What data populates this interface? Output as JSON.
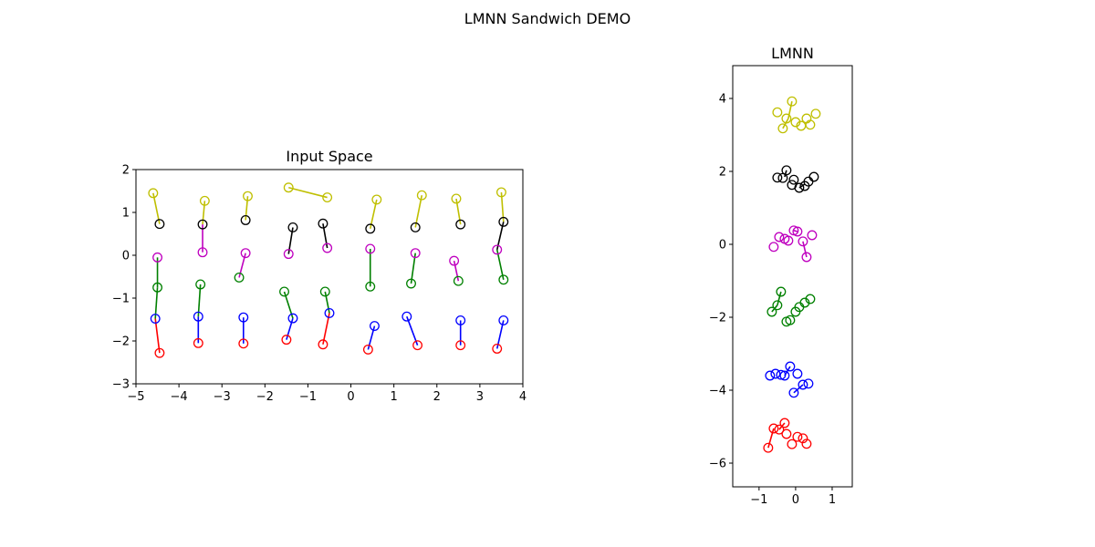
{
  "figure": {
    "suptitle": "LMNN Sandwich DEMO"
  },
  "colors": {
    "y": "#bfbf00",
    "k": "#000000",
    "m": "#bf00bf",
    "g": "#008000",
    "b": "#0000ff",
    "r": "#ff0000"
  },
  "chart_data": [
    {
      "type": "scatter",
      "title": "Input Space",
      "xlabel": "",
      "ylabel": "",
      "xlim": [
        -5,
        4
      ],
      "ylim": [
        -3,
        2
      ],
      "xticks": [
        -5,
        -4,
        -3,
        -2,
        -1,
        0,
        1,
        2,
        3,
        4
      ],
      "yticks": [
        -3,
        -2,
        -1,
        0,
        1,
        2
      ],
      "grid": false,
      "series": [
        {
          "color": "y",
          "points": [
            [
              -4.6,
              1.45
            ],
            [
              -3.4,
              1.27
            ],
            [
              -2.4,
              1.38
            ],
            [
              -1.45,
              1.58
            ],
            [
              -0.55,
              1.35
            ],
            [
              0.6,
              1.3
            ],
            [
              1.65,
              1.4
            ],
            [
              2.45,
              1.32
            ],
            [
              3.5,
              1.47
            ]
          ]
        },
        {
          "color": "k",
          "points": [
            [
              -4.45,
              0.73
            ],
            [
              -3.45,
              0.72
            ],
            [
              -2.45,
              0.82
            ],
            [
              -1.35,
              0.65
            ],
            [
              -0.65,
              0.74
            ],
            [
              0.45,
              0.62
            ],
            [
              1.5,
              0.65
            ],
            [
              2.55,
              0.72
            ],
            [
              3.55,
              0.78
            ]
          ]
        },
        {
          "color": "m",
          "points": [
            [
              -4.5,
              -0.05
            ],
            [
              -3.45,
              0.07
            ],
            [
              -2.45,
              0.05
            ],
            [
              -1.45,
              0.03
            ],
            [
              -0.55,
              0.17
            ],
            [
              0.45,
              0.15
            ],
            [
              1.5,
              0.05
            ],
            [
              2.4,
              -0.13
            ],
            [
              3.4,
              0.13
            ]
          ]
        },
        {
          "color": "g",
          "points": [
            [
              -4.5,
              -0.75
            ],
            [
              -3.5,
              -0.68
            ],
            [
              -2.6,
              -0.52
            ],
            [
              -1.55,
              -0.85
            ],
            [
              -0.6,
              -0.85
            ],
            [
              0.45,
              -0.73
            ],
            [
              1.4,
              -0.66
            ],
            [
              2.5,
              -0.6
            ],
            [
              3.55,
              -0.57
            ]
          ]
        },
        {
          "color": "b",
          "points": [
            [
              -4.55,
              -1.48
            ],
            [
              -3.55,
              -1.43
            ],
            [
              -2.5,
              -1.45
            ],
            [
              -1.35,
              -1.47
            ],
            [
              -0.5,
              -1.35
            ],
            [
              0.55,
              -1.65
            ],
            [
              1.3,
              -1.43
            ],
            [
              2.55,
              -1.52
            ],
            [
              3.55,
              -1.52
            ]
          ]
        },
        {
          "color": "r",
          "points": [
            [
              -4.45,
              -2.28
            ],
            [
              -3.55,
              -2.05
            ],
            [
              -2.5,
              -2.06
            ],
            [
              -1.5,
              -1.97
            ],
            [
              -0.65,
              -2.08
            ],
            [
              0.4,
              -2.2
            ],
            [
              1.55,
              -2.1
            ],
            [
              2.55,
              -2.1
            ],
            [
              3.4,
              -2.18
            ]
          ]
        }
      ],
      "links": [
        [
          [
            -4.6,
            1.45
          ],
          [
            -4.45,
            0.73
          ],
          "y"
        ],
        [
          [
            -3.4,
            1.27
          ],
          [
            -3.45,
            0.72
          ],
          "y"
        ],
        [
          [
            -2.4,
            1.38
          ],
          [
            -2.45,
            0.82
          ],
          "y"
        ],
        [
          [
            -1.45,
            1.58
          ],
          [
            -0.55,
            1.35
          ],
          "y"
        ],
        [
          [
            0.6,
            1.3
          ],
          [
            0.45,
            0.62
          ],
          "y"
        ],
        [
          [
            1.65,
            1.4
          ],
          [
            1.5,
            0.65
          ],
          "y"
        ],
        [
          [
            2.45,
            1.32
          ],
          [
            2.55,
            0.72
          ],
          "y"
        ],
        [
          [
            3.5,
            1.47
          ],
          [
            3.55,
            0.78
          ],
          "y"
        ],
        [
          [
            -1.35,
            0.65
          ],
          [
            -1.45,
            0.03
          ],
          "k"
        ],
        [
          [
            -0.65,
            0.74
          ],
          [
            -0.55,
            0.17
          ],
          "k"
        ],
        [
          [
            3.55,
            0.78
          ],
          [
            3.4,
            0.13
          ],
          "k"
        ],
        [
          [
            -3.45,
            0.72
          ],
          [
            -3.45,
            0.07
          ],
          "m"
        ],
        [
          [
            -2.45,
            0.05
          ],
          [
            -2.6,
            -0.52
          ],
          "m"
        ],
        [
          [
            2.4,
            -0.13
          ],
          [
            2.5,
            -0.6
          ],
          "m"
        ],
        [
          [
            -4.5,
            -0.05
          ],
          [
            -4.5,
            -0.75
          ],
          "g"
        ],
        [
          [
            -3.5,
            -0.68
          ],
          [
            -3.55,
            -1.43
          ],
          "g"
        ],
        [
          [
            -1.55,
            -0.85
          ],
          [
            -1.35,
            -1.47
          ],
          "g"
        ],
        [
          [
            -0.6,
            -0.85
          ],
          [
            -0.5,
            -1.35
          ],
          "g"
        ],
        [
          [
            0.45,
            0.15
          ],
          [
            0.45,
            -0.73
          ],
          "g"
        ],
        [
          [
            1.5,
            0.05
          ],
          [
            1.4,
            -0.66
          ],
          "g"
        ],
        [
          [
            3.4,
            0.13
          ],
          [
            3.55,
            -0.57
          ],
          "g"
        ],
        [
          [
            -4.5,
            -0.75
          ],
          [
            -4.55,
            -1.48
          ],
          "g"
        ],
        [
          [
            -3.55,
            -1.43
          ],
          [
            -3.55,
            -2.05
          ],
          "b"
        ],
        [
          [
            -2.5,
            -1.45
          ],
          [
            -2.5,
            -2.06
          ],
          "b"
        ],
        [
          [
            -1.35,
            -1.47
          ],
          [
            -1.5,
            -1.97
          ],
          "b"
        ],
        [
          [
            0.55,
            -1.65
          ],
          [
            0.4,
            -2.2
          ],
          "b"
        ],
        [
          [
            1.3,
            -1.43
          ],
          [
            1.55,
            -2.1
          ],
          "b"
        ],
        [
          [
            2.55,
            -1.52
          ],
          [
            2.55,
            -2.1
          ],
          "b"
        ],
        [
          [
            3.55,
            -1.52
          ],
          [
            3.4,
            -2.18
          ],
          "b"
        ],
        [
          [
            -4.55,
            -1.48
          ],
          [
            -4.45,
            -2.28
          ],
          "r"
        ],
        [
          [
            -0.5,
            -1.35
          ],
          [
            -0.65,
            -2.08
          ],
          "r"
        ]
      ]
    },
    {
      "type": "scatter",
      "title": "LMNN",
      "xlabel": "",
      "ylabel": "",
      "xlim": [
        -1.72,
        1.55
      ],
      "ylim": [
        -6.65,
        4.9
      ],
      "xticks": [
        -1,
        0,
        1
      ],
      "yticks": [
        -6,
        -4,
        -2,
        0,
        2,
        4
      ],
      "grid": false,
      "series": [
        {
          "color": "y",
          "points": [
            [
              -0.5,
              3.62
            ],
            [
              -0.25,
              3.45
            ],
            [
              -0.35,
              3.18
            ],
            [
              -0.1,
              3.92
            ],
            [
              0.0,
              3.35
            ],
            [
              0.15,
              3.25
            ],
            [
              0.3,
              3.45
            ],
            [
              0.4,
              3.28
            ],
            [
              0.55,
              3.58
            ]
          ]
        },
        {
          "color": "k",
          "points": [
            [
              -0.5,
              1.83
            ],
            [
              -0.35,
              1.82
            ],
            [
              -0.25,
              2.03
            ],
            [
              -0.1,
              1.63
            ],
            [
              -0.05,
              1.77
            ],
            [
              0.1,
              1.55
            ],
            [
              0.25,
              1.6
            ],
            [
              0.35,
              1.72
            ],
            [
              0.5,
              1.85
            ]
          ]
        },
        {
          "color": "m",
          "points": [
            [
              -0.6,
              -0.07
            ],
            [
              -0.45,
              0.2
            ],
            [
              -0.3,
              0.15
            ],
            [
              -0.2,
              0.1
            ],
            [
              -0.05,
              0.38
            ],
            [
              0.05,
              0.35
            ],
            [
              0.2,
              0.08
            ],
            [
              0.3,
              -0.35
            ],
            [
              0.45,
              0.25
            ]
          ]
        },
        {
          "color": "g",
          "points": [
            [
              -0.65,
              -1.85
            ],
            [
              -0.5,
              -1.67
            ],
            [
              -0.4,
              -1.3
            ],
            [
              -0.25,
              -2.12
            ],
            [
              -0.15,
              -2.08
            ],
            [
              0.0,
              -1.85
            ],
            [
              0.1,
              -1.72
            ],
            [
              0.25,
              -1.6
            ],
            [
              0.4,
              -1.5
            ]
          ]
        },
        {
          "color": "b",
          "points": [
            [
              -0.7,
              -3.6
            ],
            [
              -0.55,
              -3.55
            ],
            [
              -0.4,
              -3.58
            ],
            [
              -0.3,
              -3.6
            ],
            [
              -0.15,
              -3.35
            ],
            [
              0.05,
              -3.55
            ],
            [
              0.2,
              -3.85
            ],
            [
              0.35,
              -3.82
            ],
            [
              -0.05,
              -4.07
            ]
          ]
        },
        {
          "color": "r",
          "points": [
            [
              -0.75,
              -5.58
            ],
            [
              -0.6,
              -5.05
            ],
            [
              -0.45,
              -5.08
            ],
            [
              -0.3,
              -4.9
            ],
            [
              -0.25,
              -5.2
            ],
            [
              -0.1,
              -5.48
            ],
            [
              0.05,
              -5.28
            ],
            [
              0.2,
              -5.32
            ],
            [
              0.3,
              -5.47
            ]
          ]
        }
      ],
      "links": [
        [
          [
            -0.1,
            3.92
          ],
          [
            -0.2,
            3.45
          ],
          "y"
        ],
        [
          [
            -0.35,
            3.18
          ],
          [
            -0.2,
            3.45
          ],
          "y"
        ],
        [
          [
            -0.25,
            2.03
          ],
          [
            -0.3,
            1.85
          ],
          "k"
        ],
        [
          [
            0.1,
            1.55
          ],
          [
            0.25,
            1.65
          ],
          "k"
        ],
        [
          [
            0.3,
            -0.35
          ],
          [
            0.2,
            0.08
          ],
          "m"
        ],
        [
          [
            -0.05,
            0.38
          ],
          [
            0.05,
            0.35
          ],
          "m"
        ],
        [
          [
            -0.4,
            -1.3
          ],
          [
            -0.5,
            -1.67
          ],
          "g"
        ],
        [
          [
            -0.65,
            -1.85
          ],
          [
            -0.5,
            -1.67
          ],
          "g"
        ],
        [
          [
            -0.05,
            -4.07
          ],
          [
            0.2,
            -3.85
          ],
          "b"
        ],
        [
          [
            -0.15,
            -3.35
          ],
          [
            -0.3,
            -3.6
          ],
          "b"
        ],
        [
          [
            -0.75,
            -5.58
          ],
          [
            -0.6,
            -5.05
          ],
          "r"
        ],
        [
          [
            -0.3,
            -4.9
          ],
          [
            -0.45,
            -5.08
          ],
          "r"
        ]
      ]
    }
  ]
}
